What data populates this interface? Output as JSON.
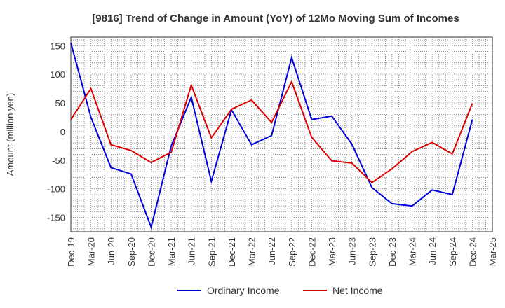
{
  "chart_data": {
    "type": "line",
    "title": "[9816]  Trend of Change in Amount (YoY) of 12Mo Moving Sum of Incomes",
    "xlabel": "",
    "ylabel": "Amount (million yen)",
    "ylim": [
      -175,
      165
    ],
    "yticks": [
      150,
      100,
      50,
      0,
      -50,
      -100,
      -150
    ],
    "grid": true,
    "legend_position": "bottom-center",
    "categories": [
      "Dec-19",
      "Mar-20",
      "Jun-20",
      "Sep-20",
      "Dec-20",
      "Mar-21",
      "Jun-21",
      "Sep-21",
      "Dec-21",
      "Mar-22",
      "Jun-22",
      "Sep-22",
      "Dec-22",
      "Mar-23",
      "Jun-23",
      "Sep-23",
      "Dec-23",
      "Mar-24",
      "Jun-24",
      "Sep-24",
      "Dec-24",
      "Mar-25"
    ],
    "x_minor_per_major": 3,
    "series": [
      {
        "name": "Ordinary Income",
        "color": "#0000dd",
        "values": [
          155,
          25,
          -63,
          -74,
          -167,
          -25,
          60,
          -87,
          38,
          -23,
          -7,
          129,
          21,
          27,
          -22,
          -98,
          -126,
          -130,
          -102,
          -110,
          21,
          null
        ]
      },
      {
        "name": "Net Income",
        "color": "#dd0000",
        "values": [
          21,
          75,
          -23,
          -33,
          -54,
          -36,
          81,
          -11,
          39,
          55,
          16,
          87,
          -10,
          -51,
          -55,
          -89,
          -65,
          -35,
          -19,
          -39,
          49,
          null
        ]
      }
    ]
  }
}
